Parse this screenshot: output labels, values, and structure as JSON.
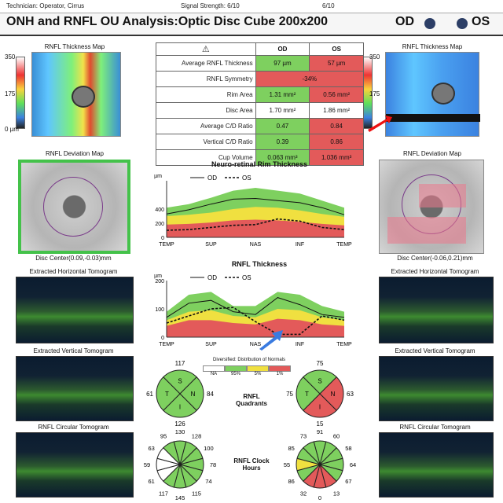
{
  "header": {
    "technician": "Technician:  Operator, Cirrus",
    "signal": "Signal Strength:  6/10",
    "signal2": "6/10"
  },
  "title": "ONH and RNFL OU Analysis:Optic Disc Cube 200x200",
  "eyes": {
    "od": "OD",
    "os": "OS"
  },
  "thickness_map": {
    "label": "RNFL Thickness Map",
    "scale": [
      "350",
      "175",
      "0 µm"
    ]
  },
  "table": {
    "head": [
      "OD",
      "OS"
    ],
    "rows": [
      {
        "label": "Average RNFL Thickness",
        "od": "97 µm",
        "os": "57 µm",
        "odc": "g",
        "osc": "r"
      },
      {
        "label": "RNFL Symmetry",
        "span": "-34%",
        "spc": "r"
      },
      {
        "label": "Rim Area",
        "od": "1.31 mm²",
        "os": "0.56 mm²",
        "odc": "g",
        "osc": "r"
      },
      {
        "label": "Disc Area",
        "od": "1.70 mm²",
        "os": "1.86 mm²",
        "odc": "w",
        "osc": "w"
      },
      {
        "label": "Average C/D Ratio",
        "od": "0.47",
        "os": "0.84",
        "odc": "g",
        "osc": "r"
      },
      {
        "label": "Vertical C/D Ratio",
        "od": "0.39",
        "os": "0.86",
        "odc": "g",
        "osc": "r"
      },
      {
        "label": "Cup Volume",
        "od": "0.063 mm³",
        "os": "1.036 mm³",
        "odc": "g",
        "osc": "r"
      }
    ]
  },
  "deviation_map": {
    "label": "RNFL Deviation Map",
    "od_center": "Disc Center(0.09,-0.03)mm",
    "os_center": "Disc Center(-0.06,0.21)mm"
  },
  "tomograms": {
    "horizontal": "Extracted Horizontal Tomogram",
    "vertical": "Extracted Vertical Tomogram",
    "circular": "RNFL Circular Tomogram"
  },
  "legend": {
    "od": "OD",
    "os": "OS",
    "unit": "µm"
  },
  "xticks": [
    "TEMP",
    "SUP",
    "NAS",
    "INF",
    "TEMP"
  ],
  "chart_data": [
    {
      "type": "line",
      "title": "Neuro-retinal Rim Thickness",
      "ylabel": "µm",
      "ylim": [
        0,
        800
      ],
      "yticks": [
        0,
        200,
        400
      ],
      "x": [
        0,
        12.5,
        25,
        37.5,
        50,
        62.5,
        75,
        87.5,
        100
      ],
      "series": [
        {
          "name": "OD",
          "values": [
            330,
            390,
            470,
            540,
            550,
            520,
            490,
            420,
            320
          ]
        },
        {
          "name": "OS",
          "values": [
            100,
            110,
            140,
            170,
            180,
            260,
            230,
            140,
            110
          ]
        }
      ],
      "normal_band": {
        "green_top": [
          420,
          470,
          560,
          660,
          700,
          660,
          620,
          520,
          420
        ],
        "yellow_top": [
          300,
          320,
          350,
          400,
          430,
          420,
          380,
          330,
          290
        ],
        "red_top": [
          180,
          190,
          210,
          240,
          250,
          240,
          220,
          190,
          170
        ]
      }
    },
    {
      "type": "line",
      "title": "RNFL Thickness",
      "ylabel": "µm",
      "ylim": [
        0,
        200
      ],
      "yticks": [
        0,
        100,
        200
      ],
      "x": [
        0,
        12.5,
        25,
        37.5,
        50,
        62.5,
        75,
        87.5,
        100
      ],
      "series": [
        {
          "name": "OD",
          "values": [
            70,
            120,
            130,
            90,
            80,
            140,
            115,
            80,
            70
          ]
        },
        {
          "name": "OS",
          "values": [
            50,
            75,
            100,
            105,
            55,
            10,
            10,
            75,
            60
          ]
        }
      ],
      "normal_band": {
        "green_top": [
          90,
          150,
          160,
          110,
          110,
          160,
          150,
          110,
          90
        ],
        "yellow_top": [
          60,
          90,
          95,
          75,
          70,
          100,
          95,
          70,
          60
        ],
        "red_top": [
          40,
          60,
          60,
          50,
          45,
          65,
          60,
          45,
          40
        ]
      }
    },
    {
      "type": "pie",
      "title": "RNFL Quadrants",
      "eye": "OD",
      "labels": [
        "S",
        "N",
        "I",
        "T"
      ],
      "values": [
        117,
        84,
        126,
        61
      ]
    },
    {
      "type": "pie",
      "title": "RNFL Quadrants",
      "eye": "OS",
      "labels": [
        "S",
        "N",
        "I",
        "T"
      ],
      "values": [
        75,
        63,
        15,
        75
      ]
    },
    {
      "type": "pie",
      "title": "RNFL Clock Hours",
      "eye": "OD",
      "values": [
        130,
        128,
        100,
        78,
        74,
        115,
        145,
        117,
        61,
        59,
        63,
        95
      ]
    },
    {
      "type": "pie",
      "title": "RNFL Clock Hours",
      "eye": "OS",
      "values": [
        91,
        60,
        58,
        64,
        67,
        13,
        0,
        32,
        86,
        55,
        85,
        73
      ]
    }
  ],
  "normals_legend": {
    "title": "Diversified: Distribution of Normals",
    "items": [
      "NA",
      "95%",
      "5%",
      "1%"
    ]
  },
  "quadrants_label": "RNFL Quadrants",
  "clock_label": "RNFL Clock Hours",
  "quad_labels": {
    "od": {
      "top": "117",
      "left": "61",
      "right": "84",
      "bottom": "126"
    },
    "os": {
      "top": "75",
      "left": "75",
      "right": "63",
      "bottom": "15"
    }
  },
  "clock_labels": {
    "od": [
      "130",
      "128",
      "100",
      "78",
      "74",
      "115",
      "145",
      "117",
      "61",
      "59",
      "63",
      "95"
    ],
    "os": [
      "91",
      "60",
      "58",
      "64",
      "67",
      "13",
      "0",
      "32",
      "86",
      "55",
      "85",
      "73"
    ]
  },
  "colors": {
    "normal": "#7ed05f",
    "borderline": "#f0e040",
    "abnormal": "#e35a5a",
    "od_line": "#111",
    "os_line": "#111"
  }
}
